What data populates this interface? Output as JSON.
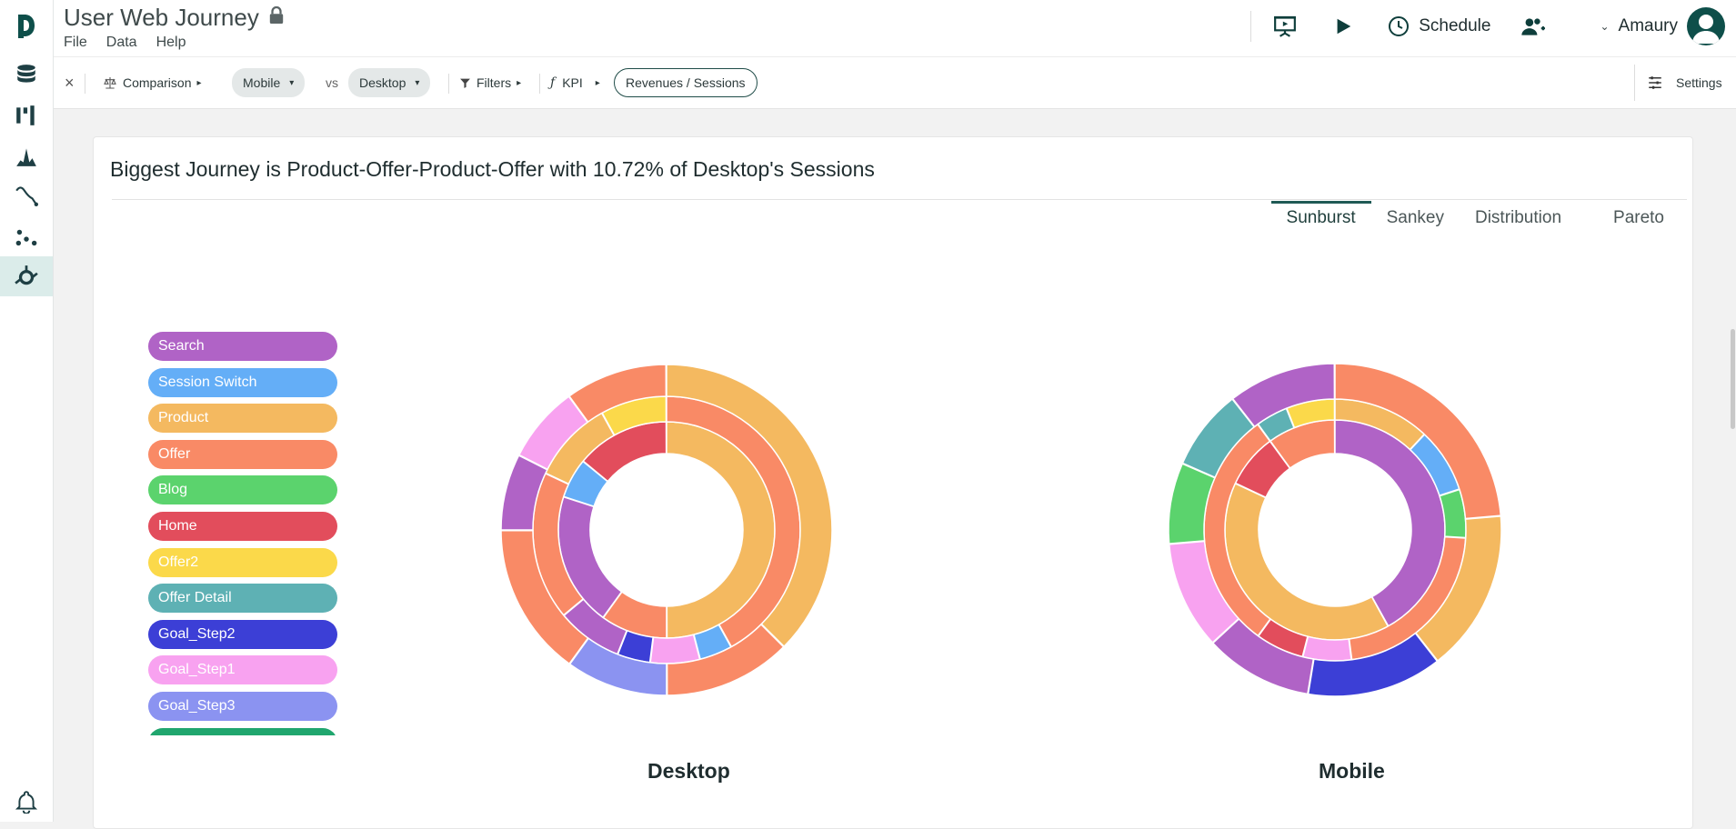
{
  "app": {
    "doc_title": "User Web Journey",
    "menu": [
      "File",
      "Data",
      "Help"
    ],
    "schedule_label": "Schedule",
    "user_name": "Amaury",
    "accent": "#0e4f4a"
  },
  "rail": {
    "icons": [
      "logo-icon",
      "database-icon",
      "dashboard-icon",
      "histogram-icon",
      "trend-icon",
      "scatter-icon",
      "journey-icon",
      "bell-icon"
    ],
    "active": "journey-icon"
  },
  "toolbar": {
    "close_glyph": "×",
    "comparison_label": "Comparison",
    "segment_a": "Mobile",
    "vs_label": "vs",
    "segment_b": "Desktop",
    "filters_label": "Filters",
    "kpi_label": "KPI",
    "kpi_value": "Revenues / Sessions",
    "settings_label": "Settings"
  },
  "panel": {
    "headline": "Biggest Journey is Product-Offer-Product-Offer with 10.72% of Desktop's Sessions",
    "tabs": [
      "Sunburst",
      "Sankey",
      "Distribution",
      "Pareto"
    ],
    "active_tab": "Sunburst"
  },
  "legend": [
    {
      "label": "Search",
      "color": "#b063c6"
    },
    {
      "label": "Session Switch",
      "color": "#64aef7"
    },
    {
      "label": "Product",
      "color": "#f4b960"
    },
    {
      "label": "Offer",
      "color": "#f98a66"
    },
    {
      "label": "Blog",
      "color": "#5bd36d"
    },
    {
      "label": "Home",
      "color": "#e24d5c"
    },
    {
      "label": "Offer2",
      "color": "#fbd94a"
    },
    {
      "label": "Offer Detail",
      "color": "#5eb1b4"
    },
    {
      "label": "Goal_Step2",
      "color": "#3c3fd6"
    },
    {
      "label": "Goal_Step1",
      "color": "#f8a2f0"
    },
    {
      "label": "Goal_Step3",
      "color": "#8b93f1"
    },
    {
      "label": "",
      "color": "#20a66e"
    }
  ],
  "chart_data": [
    {
      "type": "sunburst",
      "title": "Desktop",
      "palette_keys": "legend labels",
      "rings": [
        [
          {
            "label": "Product",
            "value": 0.5
          },
          {
            "label": "Offer",
            "value": 0.1
          },
          {
            "label": "Search",
            "value": 0.2
          },
          {
            "label": "Session Switch",
            "value": 0.06
          },
          {
            "label": "Home",
            "value": 0.14
          }
        ],
        [
          {
            "label": "Offer",
            "value": 0.42
          },
          {
            "label": "Session Switch",
            "value": 0.04
          },
          {
            "label": "Goal_Step1",
            "value": 0.06
          },
          {
            "label": "Goal_Step2",
            "value": 0.04
          },
          {
            "label": "Search",
            "value": 0.08
          },
          {
            "label": "Offer",
            "value": 0.18
          },
          {
            "label": "Product",
            "value": 0.1
          },
          {
            "label": "Offer2",
            "value": 0.08
          }
        ],
        [
          {
            "label": "Product",
            "value": 0.3
          },
          {
            "label": "Offer",
            "value": 0.1
          },
          {
            "label": "Goal_Step3",
            "value": 0.08
          },
          {
            "label": "Offer",
            "value": 0.12
          },
          {
            "label": "Search",
            "value": 0.06
          },
          {
            "label": "Goal_Step1",
            "value": 0.06
          },
          {
            "label": "Offer",
            "value": 0.08
          }
        ]
      ]
    },
    {
      "type": "sunburst",
      "title": "Mobile",
      "palette_keys": "legend labels",
      "rings": [
        [
          {
            "label": "Search",
            "value": 0.42
          },
          {
            "label": "Product",
            "value": 0.4
          },
          {
            "label": "Home",
            "value": 0.08
          },
          {
            "label": "Offer",
            "value": 0.1
          }
        ],
        [
          {
            "label": "Product",
            "value": 0.12
          },
          {
            "label": "Session Switch",
            "value": 0.08
          },
          {
            "label": "Blog",
            "value": 0.06
          },
          {
            "label": "Offer",
            "value": 0.22
          },
          {
            "label": "Goal_Step1",
            "value": 0.06
          },
          {
            "label": "Home",
            "value": 0.06
          },
          {
            "label": "Offer",
            "value": 0.3
          },
          {
            "label": "Offer Detail",
            "value": 0.04
          },
          {
            "label": "Offer2",
            "value": 0.06
          }
        ],
        [
          {
            "label": "Offer",
            "value": 0.18
          },
          {
            "label": "Product",
            "value": 0.12
          },
          {
            "label": "Goal_Step2",
            "value": 0.1
          },
          {
            "label": "Search",
            "value": 0.08
          },
          {
            "label": "Goal_Step1",
            "value": 0.08
          },
          {
            "label": "Blog",
            "value": 0.06
          },
          {
            "label": "Offer Detail",
            "value": 0.06
          },
          {
            "label": "Search",
            "value": 0.08
          }
        ]
      ]
    }
  ]
}
